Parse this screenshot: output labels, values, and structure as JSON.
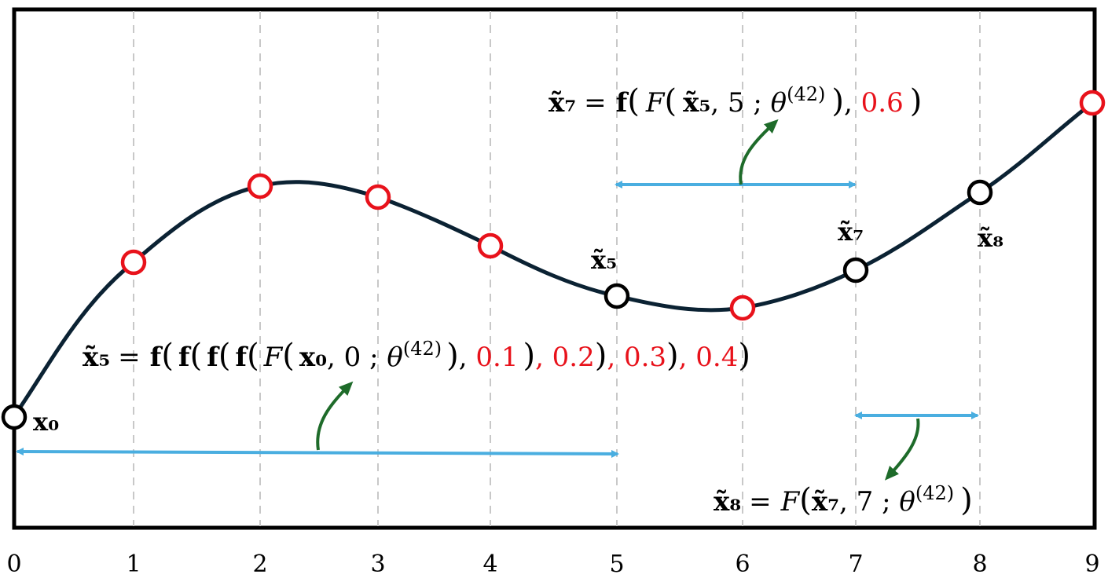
{
  "axis": {
    "ticks": [
      "0",
      "1",
      "2",
      "3",
      "4",
      "5",
      "6",
      "7",
      "8",
      "9"
    ]
  },
  "colors": {
    "curve": "#0b2233",
    "red_point": "#e8121b",
    "black_point": "#000000",
    "span_arrow": "#4aaee0",
    "pointer_arrow": "#1e6b2a",
    "grid": "#c8c8c8",
    "highlight_text": "#e8121b"
  },
  "point_labels": {
    "x0": "x₀",
    "x5": "x̃₅",
    "x7": "x̃₇",
    "x8": "x̃₈"
  },
  "equations": {
    "eq5": {
      "lhs": "x̃₅",
      "equals": "=",
      "f": "f",
      "F": "F",
      "x0": "x₀",
      "arg0": "0",
      "theta": "θ",
      "theta_sup": "(42)",
      "t1": "0.1",
      "t2": ", 0.2",
      "t3": ", 0.3",
      "t4": ", 0.4"
    },
    "eq7": {
      "lhs": "x̃₇",
      "equals": "=",
      "f": "f",
      "F": "F",
      "x5": "x̃₅",
      "arg5": "5",
      "theta": "θ",
      "theta_sup": "(42)",
      "t": "0.6"
    },
    "eq8": {
      "lhs": "x̃₈",
      "equals": "=",
      "F": "F",
      "x7": "x̃₇",
      "arg7": "7",
      "theta": "θ",
      "theta_sup": "(42)"
    }
  }
}
